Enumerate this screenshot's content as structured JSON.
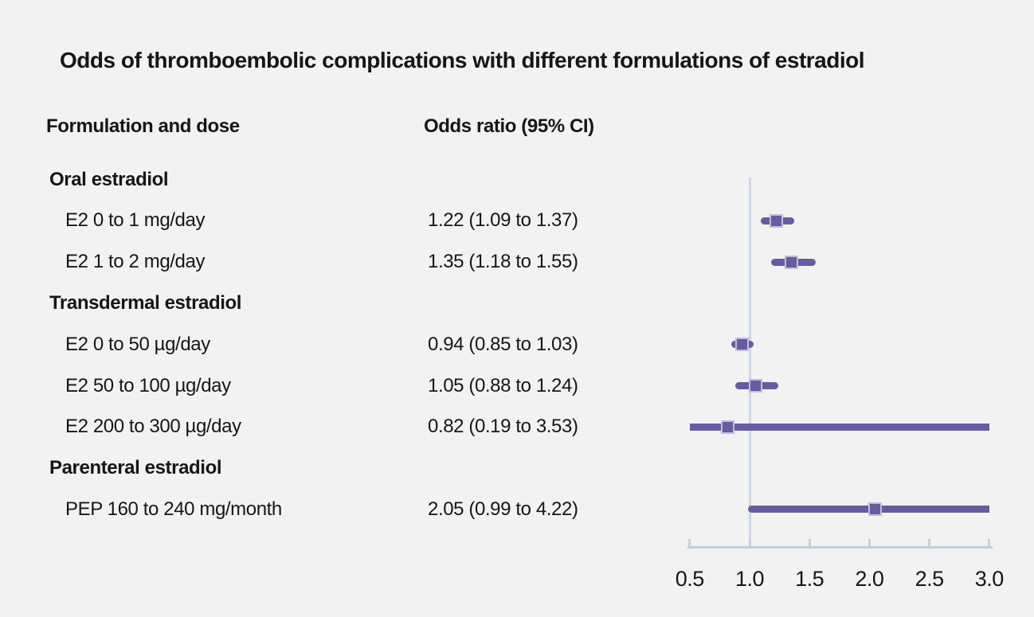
{
  "title": "Odds of thromboembolic complications with different formulations of estradiol",
  "columns": {
    "formulation": "Formulation and dose",
    "odds": "Odds ratio (95% CI)"
  },
  "colors": {
    "marker_fill": "#685ca0",
    "marker_border": "#c3bcdc",
    "ci_line": "#685ca0",
    "reference_line": "#d3d6df",
    "axis_line": "#c9cedb",
    "background": "#f2f2f2",
    "text": "#161616"
  },
  "axis": {
    "min": 0.5,
    "max": 3.0,
    "tick_values": [
      0.5,
      1.0,
      1.5,
      2.0,
      2.5,
      3.0
    ],
    "tick_labels": [
      "0.5",
      "1.0",
      "1.5",
      "2.0",
      "2.5",
      "3.0"
    ],
    "reference_value": 1.0
  },
  "rows": [
    {
      "type": "group",
      "label": "Oral estradiol"
    },
    {
      "type": "item",
      "label": "E2 0 to 1 mg/day",
      "value_text": "1.22 (1.09 to 1.37)",
      "or": 1.22,
      "ci_low": 1.09,
      "ci_high": 1.37
    },
    {
      "type": "item",
      "label": "E2 1 to 2 mg/day",
      "value_text": "1.35 (1.18 to 1.55)",
      "or": 1.35,
      "ci_low": 1.18,
      "ci_high": 1.55
    },
    {
      "type": "group",
      "label": "Transdermal estradiol"
    },
    {
      "type": "item",
      "label": "E2 0 to 50 µg/day",
      "value_text": "0.94 (0.85 to 1.03)",
      "or": 0.94,
      "ci_low": 0.85,
      "ci_high": 1.03
    },
    {
      "type": "item",
      "label": "E2 50 to 100 µg/day",
      "value_text": "1.05 (0.88 to 1.24)",
      "or": 1.05,
      "ci_low": 0.88,
      "ci_high": 1.24
    },
    {
      "type": "item",
      "label": "E2 200 to 300 µg/day",
      "value_text": "0.82 (0.19 to 3.53)",
      "or": 0.82,
      "ci_low": 0.19,
      "ci_high": 3.53
    },
    {
      "type": "group",
      "label": "Parenteral estradiol"
    },
    {
      "type": "item",
      "label": "PEP 160 to 240 mg/month",
      "value_text": "2.05 (0.99 to 4.22)",
      "or": 2.05,
      "ci_low": 0.99,
      "ci_high": 4.22
    }
  ],
  "chart_data": {
    "type": "scatter",
    "subtype": "forest-plot",
    "title": "Odds of thromboembolic complications with different formulations of estradiol",
    "xlabel": "",
    "ylabel": "",
    "xlim": [
      0.5,
      3.0
    ],
    "xticks": [
      0.5,
      1.0,
      1.5,
      2.0,
      2.5,
      3.0
    ],
    "reference_line_x": 1.0,
    "grid": false,
    "legend": false,
    "groups": [
      {
        "label": "Oral estradiol",
        "items": [
          {
            "label": "E2 0 to 1 mg/day",
            "odds_ratio": 1.22,
            "ci_low": 1.09,
            "ci_high": 1.37
          },
          {
            "label": "E2 1 to 2 mg/day",
            "odds_ratio": 1.35,
            "ci_low": 1.18,
            "ci_high": 1.55
          }
        ]
      },
      {
        "label": "Transdermal estradiol",
        "items": [
          {
            "label": "E2 0 to 50 µg/day",
            "odds_ratio": 0.94,
            "ci_low": 0.85,
            "ci_high": 1.03
          },
          {
            "label": "E2 50 to 100 µg/day",
            "odds_ratio": 1.05,
            "ci_low": 0.88,
            "ci_high": 1.24
          },
          {
            "label": "E2 200 to 300 µg/day",
            "odds_ratio": 0.82,
            "ci_low": 0.19,
            "ci_high": 3.53
          }
        ]
      },
      {
        "label": "Parenteral estradiol",
        "items": [
          {
            "label": "PEP 160 to 240 mg/month",
            "odds_ratio": 2.05,
            "ci_low": 0.99,
            "ci_high": 4.22
          }
        ]
      }
    ]
  }
}
